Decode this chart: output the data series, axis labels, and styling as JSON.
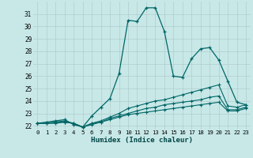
{
  "xlabel": "Humidex (Indice chaleur)",
  "bg_color": "#c8e8e8",
  "grid_color": "#b0cccc",
  "line_color": "#006666",
  "xlim": [
    -0.5,
    23.5
  ],
  "ylim": [
    21.7,
    32.0
  ],
  "yticks": [
    22,
    23,
    24,
    25,
    26,
    27,
    28,
    29,
    30,
    31
  ],
  "xticks": [
    0,
    1,
    2,
    3,
    4,
    5,
    6,
    7,
    8,
    9,
    10,
    11,
    12,
    13,
    14,
    15,
    16,
    17,
    18,
    19,
    20,
    21,
    22,
    23
  ],
  "line1_x": [
    0,
    1,
    2,
    3,
    4,
    5,
    6,
    7,
    8,
    9,
    10,
    11,
    12,
    13,
    14,
    15,
    16,
    17,
    18,
    19,
    20,
    21,
    22,
    23
  ],
  "line1_y": [
    22.2,
    22.3,
    22.4,
    22.5,
    22.1,
    21.9,
    22.8,
    23.5,
    24.2,
    26.2,
    30.5,
    30.4,
    31.5,
    31.5,
    29.6,
    26.0,
    25.9,
    27.4,
    28.2,
    28.3,
    27.3,
    25.6,
    23.9,
    23.7
  ],
  "line2_x": [
    0,
    1,
    2,
    3,
    4,
    5,
    6,
    7,
    8,
    9,
    10,
    11,
    12,
    13,
    14,
    15,
    16,
    17,
    18,
    19,
    20,
    21,
    22,
    23
  ],
  "line2_y": [
    22.2,
    22.2,
    22.3,
    22.4,
    22.2,
    21.9,
    22.2,
    22.4,
    22.7,
    23.0,
    23.4,
    23.6,
    23.8,
    24.0,
    24.1,
    24.3,
    24.5,
    24.7,
    24.9,
    25.1,
    25.3,
    23.6,
    23.5,
    23.7
  ],
  "line3_x": [
    0,
    1,
    2,
    3,
    4,
    5,
    6,
    7,
    8,
    9,
    10,
    11,
    12,
    13,
    14,
    15,
    16,
    17,
    18,
    19,
    20,
    21,
    22,
    23
  ],
  "line3_y": [
    22.2,
    22.2,
    22.3,
    22.3,
    22.2,
    21.9,
    22.2,
    22.3,
    22.6,
    22.8,
    23.0,
    23.2,
    23.4,
    23.5,
    23.7,
    23.8,
    23.9,
    24.0,
    24.1,
    24.3,
    24.4,
    23.3,
    23.3,
    23.5
  ],
  "line4_x": [
    0,
    1,
    2,
    3,
    4,
    5,
    6,
    7,
    8,
    9,
    10,
    11,
    12,
    13,
    14,
    15,
    16,
    17,
    18,
    19,
    20,
    21,
    22,
    23
  ],
  "line4_y": [
    22.2,
    22.2,
    22.2,
    22.3,
    22.2,
    21.9,
    22.1,
    22.3,
    22.5,
    22.7,
    22.9,
    23.0,
    23.1,
    23.2,
    23.3,
    23.4,
    23.5,
    23.6,
    23.7,
    23.8,
    23.9,
    23.2,
    23.2,
    23.4
  ]
}
